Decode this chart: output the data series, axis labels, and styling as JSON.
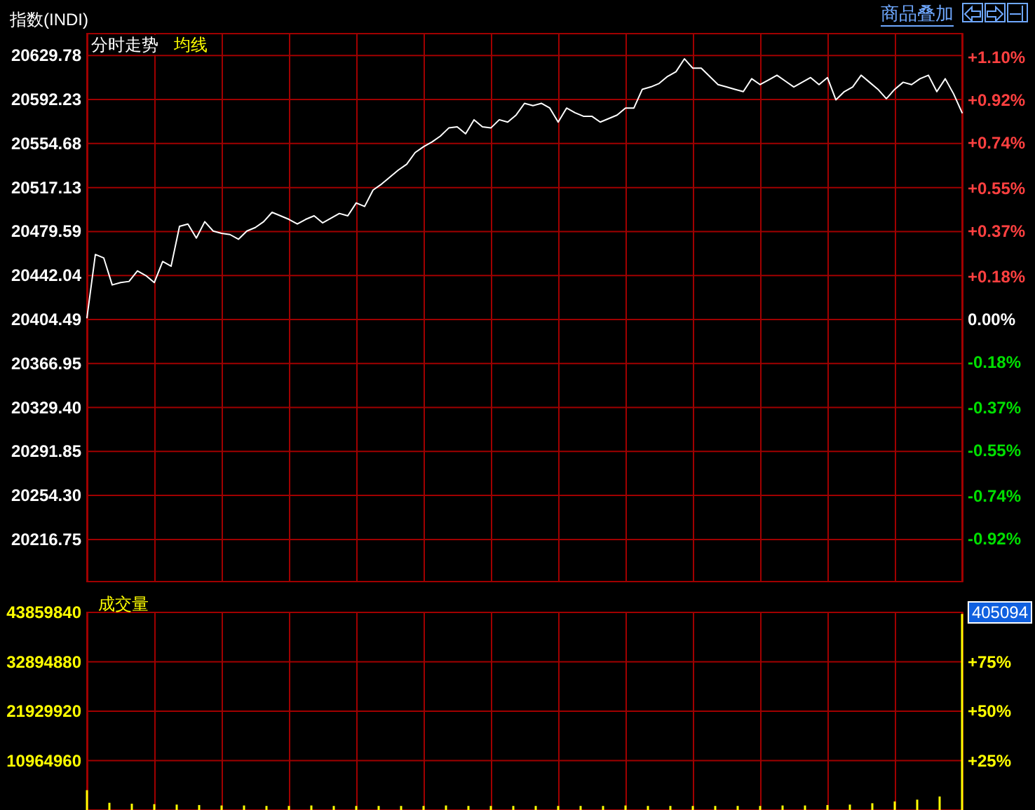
{
  "chart_data": [
    {
      "type": "line",
      "title": "指数(INDI)",
      "subtitle": "分时走势",
      "annotations": [
        "均线",
        "商品叠加"
      ],
      "categories": [
        null,
        null,
        null,
        null,
        null,
        null,
        null,
        null,
        null,
        null,
        null,
        null,
        null,
        null,
        null,
        null,
        null,
        null,
        null,
        null,
        null,
        null,
        null,
        null,
        null,
        null,
        null,
        null,
        null,
        null,
        null,
        null,
        null,
        null,
        null,
        null,
        null,
        null,
        null,
        null,
        null,
        null,
        null,
        null,
        null,
        null,
        null,
        null,
        null,
        null,
        null,
        null,
        null,
        null,
        null,
        null,
        null,
        null,
        null,
        null,
        null,
        null,
        null,
        null,
        null,
        null,
        null,
        null,
        null,
        null,
        null,
        null,
        null,
        null,
        null,
        null,
        null,
        null,
        null,
        null,
        null,
        null,
        null,
        null,
        null,
        null,
        null,
        null,
        null,
        null,
        null,
        null,
        null,
        null,
        null,
        null,
        null,
        null,
        null,
        null,
        null,
        null,
        null,
        null,
        null
      ],
      "series": [
        {
          "color": "#ffffff",
          "values": [
            20406,
            20460,
            20457,
            20434,
            20436,
            20437,
            20446,
            20442,
            20436,
            20454,
            20450,
            20484,
            20486,
            20474,
            20488,
            20480,
            20478,
            20477,
            20473,
            20480,
            20483,
            20488,
            20496,
            20493,
            20490,
            20486,
            20490,
            20493,
            20487,
            20491,
            20495,
            20493,
            20504,
            20501,
            20515,
            20520,
            20526,
            20532,
            20537,
            20547,
            20552,
            20556,
            20561,
            20568,
            20569,
            20563,
            20575,
            20569,
            20568,
            20575,
            20573,
            20579,
            20589,
            20587,
            20589,
            20585,
            20573,
            20585,
            20581,
            20578,
            20578,
            20573,
            20576,
            20579,
            20585,
            20585,
            20601,
            20603,
            20606,
            20612,
            20616,
            20627,
            20619,
            20619,
            20612,
            20605,
            20603,
            20601,
            20599,
            20610,
            20605,
            20609,
            20613,
            20608,
            20603,
            20607,
            20611,
            20605,
            20611,
            20592,
            20599,
            20603,
            20613,
            20607,
            20601,
            20593,
            20601,
            20607,
            20605,
            20610,
            20613,
            20599,
            20610,
            20597,
            20581
          ]
        }
      ],
      "ylim": [
        20180.8,
        20648.5
      ],
      "yticks": [
        20216.75,
        {
          "value": 20254.3,
          "label": "20254.30"
        },
        20291.85,
        {
          "value": 20329.4,
          "label": "20329.40"
        },
        20366.95,
        20404.49,
        20442.04,
        20479.59,
        20517.13,
        20554.68,
        20592.23,
        20629.78
      ],
      "y2lim": [
        -1.1,
        1.2
      ],
      "y2ticks": [
        {
          "value": -0.92,
          "label": "-0.92%"
        },
        {
          "value": -0.74,
          "label": "-0.74%"
        },
        {
          "value": -0.55,
          "label": "-0.55%"
        },
        {
          "value": -0.37,
          "label": "-0.37%"
        },
        {
          "value": -0.18,
          "label": "-0.18%"
        },
        {
          "value": 0,
          "label": "0.00%"
        },
        {
          "value": 0.18,
          "label": "+0.18%"
        },
        {
          "value": 0.37,
          "label": "+0.37%"
        },
        {
          "value": 0.55,
          "label": "+0.55%"
        },
        {
          "value": 0.74,
          "label": "+0.74%"
        },
        {
          "value": 0.92,
          "label": "+0.92%"
        },
        {
          "value": 1.1,
          "label": "+1.10%"
        }
      ],
      "grid": true,
      "tick_labels": "y",
      "marker": "none",
      "line_style": "solid"
    },
    {
      "type": "bar",
      "title": "成交量",
      "annotations": [
        "405094"
      ],
      "categories": [
        null,
        null,
        null,
        null,
        null,
        null,
        null,
        null,
        null,
        null,
        null,
        null,
        null,
        null,
        null,
        null,
        null,
        null,
        null,
        null,
        null,
        null,
        null,
        null,
        null,
        null,
        null,
        null,
        null,
        null,
        null,
        null,
        null,
        null,
        null,
        null,
        null,
        null,
        null,
        null
      ],
      "series": [
        {
          "color": "#ffff00",
          "values": [
            4400000,
            1600000,
            1400000,
            1300000,
            1200000,
            1100000,
            1000000,
            1000000,
            900000,
            900000,
            1000000,
            900000,
            900000,
            900000,
            900000,
            900000,
            1000000,
            900000,
            900000,
            900000,
            900000,
            900000,
            900000,
            900000,
            1000000,
            900000,
            900000,
            900000,
            900000,
            900000,
            900000,
            1000000,
            1000000,
            1100000,
            1200000,
            1500000,
            1900000,
            2300000,
            3000000,
            43500000
          ]
        }
      ],
      "ylim": [
        0,
        43859840
      ],
      "yticks": [
        10964960,
        21929920,
        32894880,
        43859840
      ],
      "y2lim": [
        0,
        100
      ],
      "y2ticks": [
        {
          "value": 25,
          "label": "+25%"
        },
        {
          "value": 50,
          "label": "+50%"
        },
        {
          "value": 75,
          "label": "+75%"
        }
      ],
      "grid": true,
      "tick_labels": "y"
    }
  ]
}
